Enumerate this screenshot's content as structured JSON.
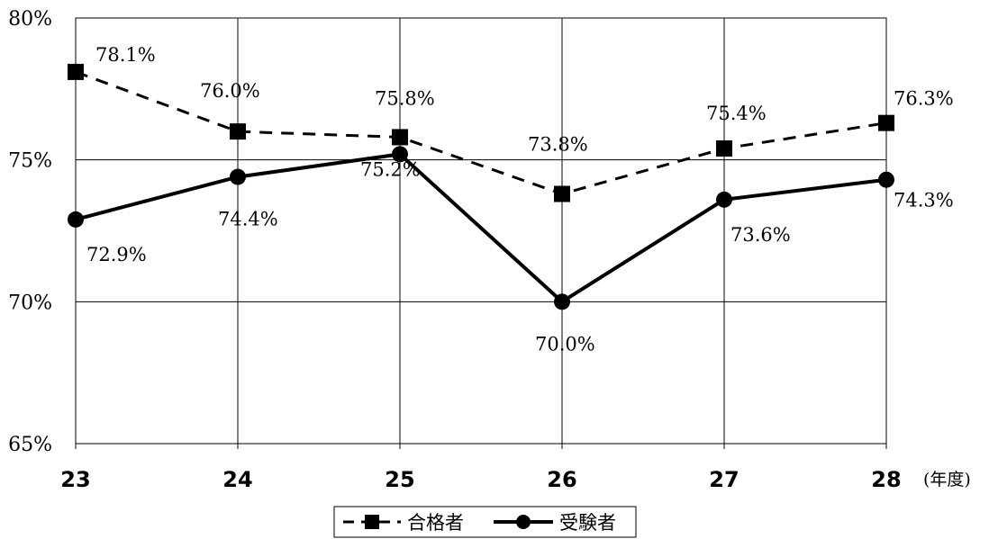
{
  "chart_data": {
    "type": "line",
    "categories": [
      "23",
      "24",
      "25",
      "26",
      "27",
      "28"
    ],
    "x_unit": "(年度)",
    "ylim": [
      65,
      80
    ],
    "y_ticks": [
      65,
      70,
      75,
      80
    ],
    "y_tick_format": "%",
    "grid": true,
    "legend_position": "bottom",
    "series": [
      {
        "name": "合格者",
        "values": [
          78.1,
          76.0,
          75.8,
          73.8,
          75.4,
          76.3
        ],
        "labels": [
          "78.1%",
          "76.0%",
          "75.8%",
          "73.8%",
          "75.4%",
          "76.3%"
        ],
        "style": "dashed",
        "marker": "square",
        "color": "#000000"
      },
      {
        "name": "受験者",
        "values": [
          72.9,
          74.4,
          75.2,
          70.0,
          73.6,
          74.3
        ],
        "labels": [
          "72.9%",
          "74.4%",
          "75.2%",
          "70.0%",
          "73.6%",
          "74.3%"
        ],
        "style": "solid",
        "marker": "circle",
        "color": "#000000"
      }
    ]
  }
}
